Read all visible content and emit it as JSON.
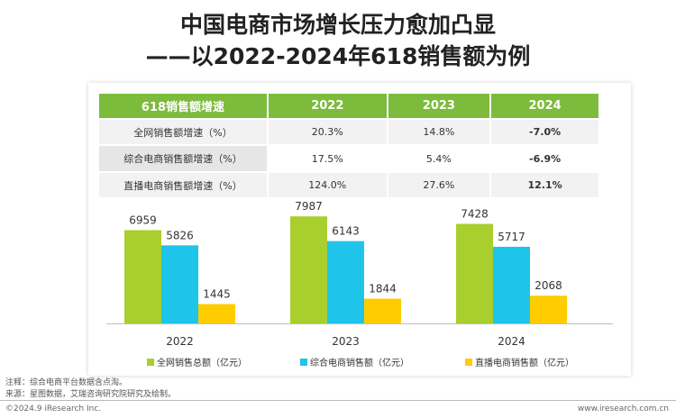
{
  "header": {
    "title_line1": "中国电商市场增长压力愈加凸显",
    "title_line2": "——以2022-2024年618销售额为例"
  },
  "table": {
    "headers": [
      "618销售额增速",
      "2022",
      "2023",
      "2024"
    ],
    "rows": [
      {
        "label": "全网销售额增速（%）",
        "values": [
          "20.3%",
          "14.8%",
          "-7.0%"
        ]
      },
      {
        "label": "综合电商销售额增速（%）",
        "values": [
          "17.5%",
          "5.4%",
          "-6.9%"
        ]
      },
      {
        "label": "直播电商销售额增速（%）",
        "values": [
          "124.0%",
          "27.6%",
          "12.1%"
        ]
      }
    ]
  },
  "chart_data": {
    "type": "bar",
    "categories": [
      "2022",
      "2023",
      "2024"
    ],
    "series": [
      {
        "name": "全网销售总额（亿元）",
        "values": [
          6959,
          7987,
          7428
        ],
        "color": "#a8cf2e"
      },
      {
        "name": "综合电商销售额（亿元）",
        "values": [
          5826,
          6143,
          5717
        ],
        "color": "#1fc4ea"
      },
      {
        "name": "直播电商销售额（亿元）",
        "values": [
          1445,
          1844,
          2068
        ],
        "color": "#ffcc00"
      }
    ],
    "ylim": [
      0,
      9000
    ],
    "grid": false,
    "legend": "bottom"
  },
  "notes": {
    "note1": "注释：综合电商平台数据含点淘。",
    "note2": "来源：星图数据，艾瑞咨询研究院研究及绘制。"
  },
  "footer": {
    "left": "©2024.9 iResearch Inc.",
    "right": "www.iresearch.com.cn"
  }
}
